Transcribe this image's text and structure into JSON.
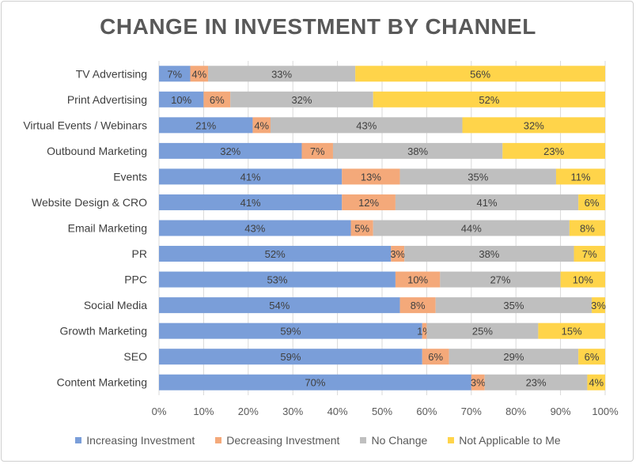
{
  "chart_data": {
    "type": "bar",
    "orientation": "horizontal",
    "stacked": true,
    "title": "CHANGE IN INVESTMENT BY CHANNEL",
    "xlabel": "",
    "ylabel": "",
    "xlim": [
      0,
      100
    ],
    "x_ticks": [
      "0%",
      "10%",
      "20%",
      "30%",
      "40%",
      "50%",
      "60%",
      "70%",
      "80%",
      "90%",
      "100%"
    ],
    "legend_position": "bottom",
    "categories": [
      "TV Advertising",
      "Print Advertising",
      "Virtual Events / Webinars",
      "Outbound Marketing",
      "Events",
      "Website Design & CRO",
      "Email Marketing",
      "PR",
      "PPC",
      "Social Media",
      "Growth Marketing",
      "SEO",
      "Content Marketing"
    ],
    "series": [
      {
        "name": "Increasing Investment",
        "color": "#7a9ed9",
        "values": [
          7,
          10,
          21,
          32,
          41,
          41,
          43,
          52,
          53,
          54,
          59,
          59,
          70
        ]
      },
      {
        "name": "Decreasing Investment",
        "color": "#f4a97a",
        "values": [
          4,
          6,
          4,
          7,
          13,
          12,
          5,
          3,
          10,
          8,
          1,
          6,
          3
        ]
      },
      {
        "name": "No Change",
        "color": "#bfbfbf",
        "values": [
          33,
          32,
          43,
          38,
          35,
          41,
          44,
          38,
          27,
          35,
          25,
          29,
          23
        ]
      },
      {
        "name": "Not Applicable to Me",
        "color": "#ffd44a",
        "values": [
          56,
          52,
          32,
          23,
          11,
          6,
          8,
          7,
          10,
          3,
          15,
          6,
          4
        ]
      }
    ]
  }
}
